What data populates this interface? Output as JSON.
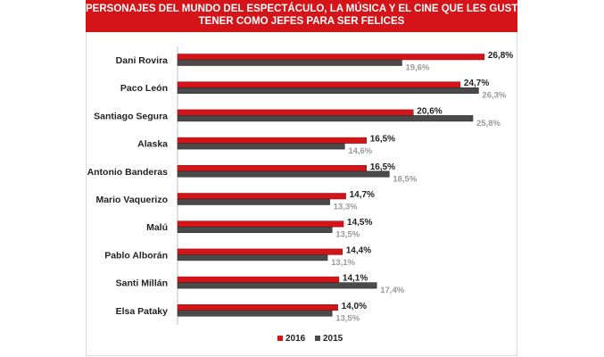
{
  "title_lines": [
    "PERSONAJES DEL MUNDO DEL ESPECTÁCULO, LA MÚSICA Y EL CINE QUE LES GUSTARÍA",
    "TENER COMO JEFES PARA SER FELICES"
  ],
  "chart_data": {
    "type": "bar",
    "orientation": "horizontal",
    "title": "PERSONAJES DEL MUNDO DEL ESPECTÁCULO, LA MÚSICA Y EL CINE QUE LES GUSTARÍA TENER COMO JEFES PARA SER FELICES",
    "categories": [
      "Dani Rovira",
      "Paco León",
      "Santiago Segura",
      "Alaska",
      "Antonio Banderas",
      "Mario Vaquerizo",
      "Malú",
      "Pablo Alborán",
      "Santi Millán",
      "Elsa Pataky"
    ],
    "series": [
      {
        "name": "2016",
        "color": "#d41419",
        "label_color": "#222222",
        "values": [
          26.8,
          24.7,
          20.6,
          16.5,
          16.5,
          14.7,
          14.5,
          14.4,
          14.1,
          14.0
        ],
        "labels": [
          "26,8%",
          "24,7%",
          "20,6%",
          "16,5%",
          "16,5%",
          "14,7%",
          "14,5%",
          "14,4%",
          "14,1%",
          "14,0%"
        ]
      },
      {
        "name": "2015",
        "color": "#4a4a4a",
        "label_color": "#9a9a9a",
        "values": [
          19.6,
          26.3,
          25.8,
          14.6,
          18.5,
          13.3,
          13.5,
          13.1,
          17.4,
          13.5
        ],
        "labels": [
          "19,6%",
          "26,3%",
          "25,8%",
          "14,6%",
          "18,5%",
          "13,3%",
          "13,5%",
          "13,1%",
          "17,4%",
          "13,5%"
        ]
      }
    ],
    "xlim": [
      0,
      28
    ],
    "grid": false,
    "legend_position": "bottom"
  }
}
